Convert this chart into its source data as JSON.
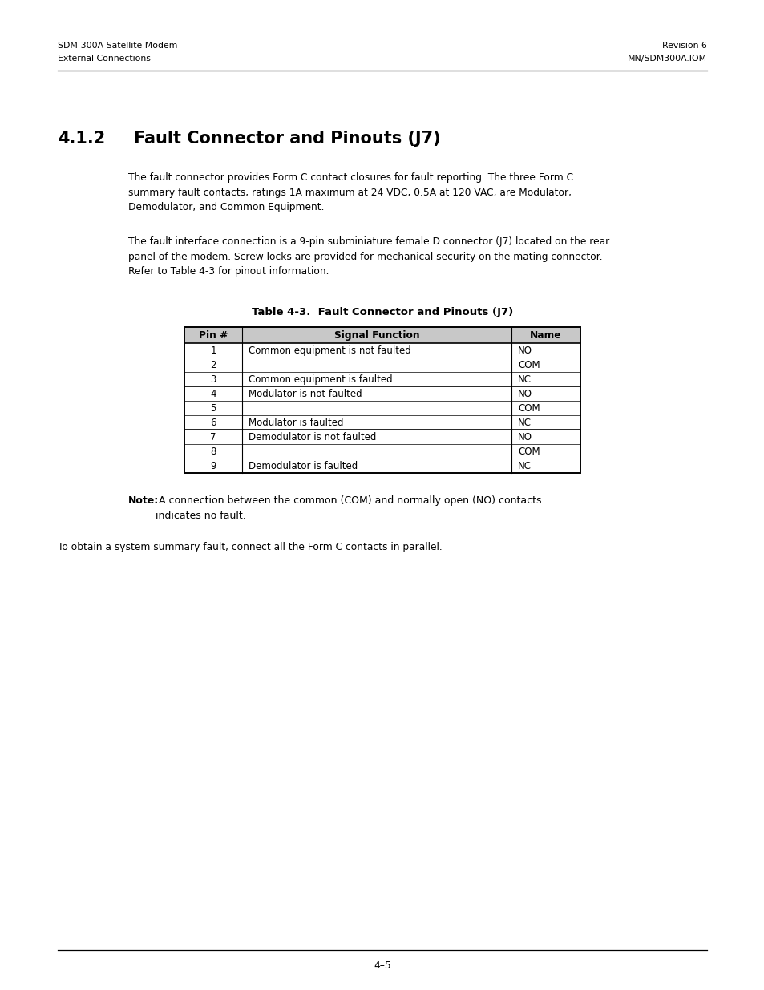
{
  "header_left_line1": "SDM-300A Satellite Modem",
  "header_left_line2": "External Connections",
  "header_right_line1": "Revision 6",
  "header_right_line2": "MN/SDM300A.IOM",
  "section_number": "4.1.2",
  "section_title": "Fault Connector and Pinouts (J7)",
  "para1": "The fault connector provides Form C contact closures for fault reporting. The three Form C\nsummary fault contacts, ratings 1A maximum at 24 VDC, 0.5A at 120 VAC, are Modulator,\nDemodulator, and Common Equipment.",
  "para2": "The fault interface connection is a 9-pin subminiature female D connector (J7) located on the rear\npanel of the modem. Screw locks are provided for mechanical security on the mating connector.\nRefer to Table 4-3 for pinout information.",
  "table_title": "Table 4-3.  Fault Connector and Pinouts (J7)",
  "table_headers": [
    "Pin #",
    "Signal Function",
    "Name"
  ],
  "table_rows": [
    [
      "1",
      "Common equipment is not faulted",
      "NO"
    ],
    [
      "2",
      "",
      "COM"
    ],
    [
      "3",
      "Common equipment is faulted",
      "NC"
    ],
    [
      "4",
      "Modulator is not faulted",
      "NO"
    ],
    [
      "5",
      "",
      "COM"
    ],
    [
      "6",
      "Modulator is faulted",
      "NC"
    ],
    [
      "7",
      "Demodulator is not faulted",
      "NO"
    ],
    [
      "8",
      "",
      "COM"
    ],
    [
      "9",
      "Demodulator is faulted",
      "NC"
    ]
  ],
  "group_separators_after": [
    2,
    5,
    8
  ],
  "note_bold": "Note:",
  "note_rest": " A connection between the common (COM) and normally open (NO) contacts\nindicates no fault.",
  "para3": "To obtain a system summary fault, connect all the Form C contacts in parallel.",
  "footer_text": "4–5",
  "bg_color": "#ffffff",
  "text_color": "#000000",
  "header_bg": "#c8c8c8"
}
